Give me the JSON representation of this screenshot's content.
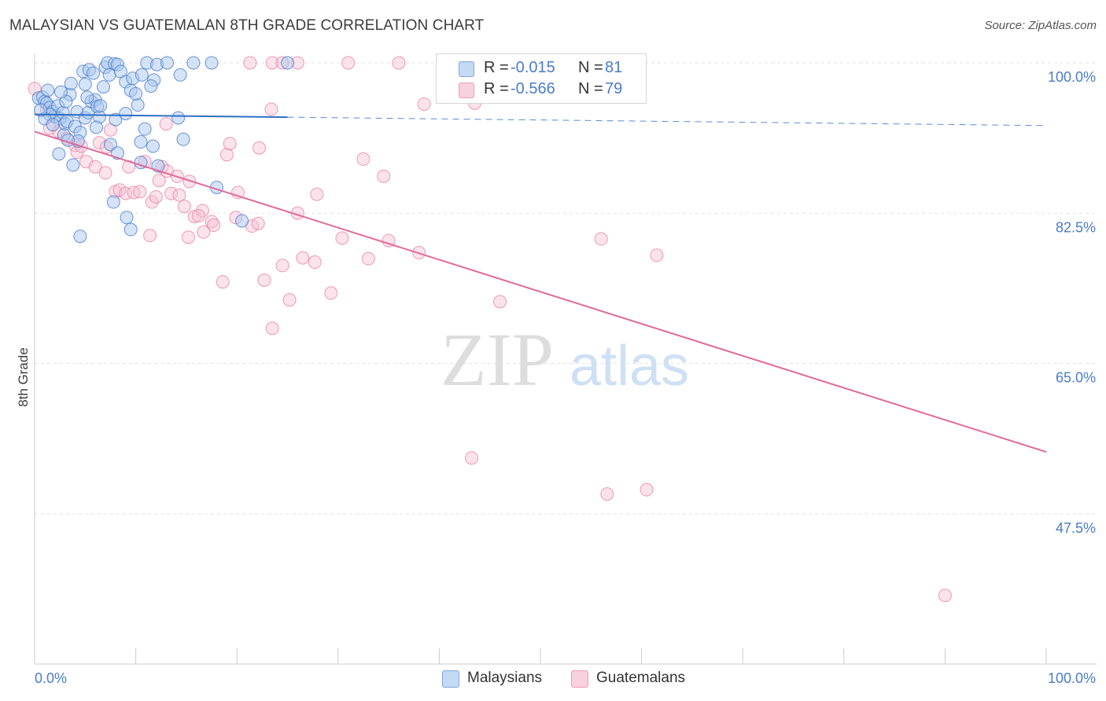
{
  "header": {
    "title": "MALAYSIAN VS GUATEMALAN 8TH GRADE CORRELATION CHART",
    "source": "Source: ZipAtlas.com"
  },
  "watermark": {
    "zip": "ZIP",
    "atlas": "atlas"
  },
  "legend": {
    "malaysian": {
      "r_label": "R =",
      "r_value": "-0.015",
      "n_label": "N =",
      "n_value": "81"
    },
    "guatemalan": {
      "r_label": "R =",
      "r_value": "-0.566",
      "n_label": "N =",
      "n_value": "79"
    }
  },
  "bottom_legend": {
    "malaysians": "Malaysians",
    "guatemalans": "Guatemalans"
  },
  "colors": {
    "malaysian_fill": "#aac8ef",
    "malaysian_stroke": "#4a7cc9",
    "malaysian_line": "#2f6fc4",
    "guatemalan_fill": "#f7c0d2",
    "guatemalan_stroke": "#e87aa0",
    "guatemalan_line": "#e06a98",
    "tick_text": "#4a7cc9"
  },
  "chart_data": {
    "type": "scatter",
    "title": "MALAYSIAN VS GUATEMALAN 8TH GRADE CORRELATION CHART",
    "xlabel": "",
    "ylabel": "8th Grade",
    "xlim": [
      0,
      100
    ],
    "ylim": [
      30,
      100
    ],
    "x_tick_labels": [
      "0.0%",
      "100.0%"
    ],
    "y_ticks": [
      100,
      82.5,
      65,
      47.5
    ],
    "y_tick_labels": [
      "100.0%",
      "82.5%",
      "65.0%",
      "47.5%"
    ],
    "grid": true,
    "series": [
      {
        "name": "Malaysians",
        "r": -0.015,
        "n": 81,
        "trend": {
          "x0": 0,
          "y0": 94.0,
          "x1": 100,
          "y1": 92.7,
          "solid_until_x": 25
        },
        "points": [
          [
            0.4,
            95.9
          ],
          [
            0.8,
            96.0
          ],
          [
            1.0,
            95.5
          ],
          [
            1.2,
            95.3
          ],
          [
            1.5,
            94.8
          ],
          [
            1.8,
            94.3
          ],
          [
            2.0,
            93.8
          ],
          [
            2.3,
            95.0
          ],
          [
            2.5,
            93.5
          ],
          [
            2.8,
            94.2
          ],
          [
            3.0,
            92.9
          ],
          [
            3.2,
            93.2
          ],
          [
            3.5,
            96.3
          ],
          [
            3.6,
            97.6
          ],
          [
            4.0,
            92.6
          ],
          [
            4.2,
            94.3
          ],
          [
            4.5,
            91.9
          ],
          [
            5.0,
            93.6
          ],
          [
            5.3,
            94.2
          ],
          [
            5.6,
            95.5
          ],
          [
            6.0,
            95.7
          ],
          [
            6.2,
            94.9
          ],
          [
            6.4,
            93.7
          ],
          [
            6.5,
            95.0
          ],
          [
            4.3,
            90.9
          ],
          [
            2.4,
            89.4
          ],
          [
            3.8,
            88.1
          ],
          [
            4.8,
            99.0
          ],
          [
            5.4,
            99.2
          ],
          [
            5.8,
            98.8
          ],
          [
            7.0,
            99.5
          ],
          [
            7.2,
            100.0
          ],
          [
            7.4,
            98.6
          ],
          [
            7.9,
            99.9
          ],
          [
            8.2,
            99.8
          ],
          [
            8.5,
            99.0
          ],
          [
            9.0,
            97.8
          ],
          [
            9.5,
            96.8
          ],
          [
            9.7,
            98.2
          ],
          [
            10.2,
            95.1
          ],
          [
            10.6,
            98.6
          ],
          [
            11.1,
            100.0
          ],
          [
            11.8,
            98.0
          ],
          [
            12.1,
            99.8
          ],
          [
            13.1,
            100.0
          ],
          [
            14.4,
            98.6
          ],
          [
            15.7,
            100.0
          ],
          [
            17.5,
            100.0
          ],
          [
            25.0,
            100.0
          ],
          [
            10.9,
            92.3
          ],
          [
            10.5,
            88.4
          ],
          [
            10.5,
            90.8
          ],
          [
            11.7,
            90.3
          ],
          [
            14.2,
            93.6
          ],
          [
            14.7,
            91.1
          ],
          [
            12.2,
            88.0
          ],
          [
            9.1,
            82.0
          ],
          [
            7.8,
            83.8
          ],
          [
            9.5,
            80.6
          ],
          [
            4.5,
            79.8
          ],
          [
            18.0,
            85.5
          ],
          [
            20.5,
            81.6
          ],
          [
            1.5,
            94.0
          ],
          [
            2.9,
            91.6
          ],
          [
            3.3,
            91.0
          ],
          [
            7.5,
            90.5
          ],
          [
            8.2,
            89.5
          ],
          [
            5.0,
            97.5
          ],
          [
            6.8,
            97.2
          ],
          [
            3.1,
            95.5
          ],
          [
            2.6,
            96.6
          ],
          [
            5.2,
            96.0
          ],
          [
            1.0,
            93.5
          ],
          [
            1.8,
            92.8
          ],
          [
            0.6,
            94.5
          ],
          [
            1.3,
            96.8
          ],
          [
            6.1,
            92.5
          ],
          [
            8.0,
            93.4
          ],
          [
            9.0,
            94.1
          ],
          [
            10.0,
            96.4
          ],
          [
            11.5,
            97.3
          ]
        ]
      },
      {
        "name": "Guatemalans",
        "r": -0.566,
        "n": 79,
        "trend": {
          "x0": 0,
          "y0": 92.0,
          "x1": 100,
          "y1": 54.7
        },
        "points": [
          [
            0.0,
            97.0
          ],
          [
            1.2,
            94.5
          ],
          [
            1.5,
            92.4
          ],
          [
            2.4,
            92.0
          ],
          [
            3.2,
            91.2
          ],
          [
            4.0,
            90.4
          ],
          [
            4.2,
            89.6
          ],
          [
            4.6,
            90.3
          ],
          [
            5.1,
            88.5
          ],
          [
            6.0,
            87.9
          ],
          [
            6.4,
            90.7
          ],
          [
            7.0,
            87.2
          ],
          [
            7.1,
            90.2
          ],
          [
            7.5,
            92.2
          ],
          [
            8.0,
            85.0
          ],
          [
            8.4,
            85.2
          ],
          [
            9.0,
            84.8
          ],
          [
            9.8,
            84.9
          ],
          [
            9.3,
            87.9
          ],
          [
            10.4,
            85.0
          ],
          [
            10.9,
            88.5
          ],
          [
            11.4,
            79.9
          ],
          [
            11.6,
            83.8
          ],
          [
            12.0,
            84.4
          ],
          [
            12.3,
            86.3
          ],
          [
            12.6,
            87.9
          ],
          [
            13.1,
            87.4
          ],
          [
            13.0,
            92.9
          ],
          [
            13.5,
            84.8
          ],
          [
            14.1,
            86.8
          ],
          [
            14.3,
            84.6
          ],
          [
            14.8,
            83.3
          ],
          [
            15.2,
            79.7
          ],
          [
            15.8,
            82.1
          ],
          [
            15.3,
            86.2
          ],
          [
            16.6,
            82.8
          ],
          [
            16.2,
            82.2
          ],
          [
            16.7,
            80.3
          ],
          [
            17.5,
            81.5
          ],
          [
            17.7,
            81.1
          ],
          [
            18.6,
            74.5
          ],
          [
            19.0,
            89.3
          ],
          [
            19.3,
            90.6
          ],
          [
            19.9,
            82.0
          ],
          [
            20.1,
            84.9
          ],
          [
            21.5,
            81.0
          ],
          [
            22.1,
            81.3
          ],
          [
            22.7,
            74.7
          ],
          [
            22.2,
            90.1
          ],
          [
            23.4,
            94.6
          ],
          [
            23.5,
            69.1
          ],
          [
            24.5,
            76.4
          ],
          [
            25.2,
            72.4
          ],
          [
            26.0,
            82.5
          ],
          [
            26.5,
            77.3
          ],
          [
            27.7,
            76.8
          ],
          [
            27.9,
            84.7
          ],
          [
            29.3,
            73.2
          ],
          [
            30.4,
            79.6
          ],
          [
            32.5,
            88.8
          ],
          [
            33.0,
            77.2
          ],
          [
            34.5,
            86.8
          ],
          [
            35.0,
            79.3
          ],
          [
            38.0,
            77.9
          ],
          [
            38.5,
            95.2
          ],
          [
            43.5,
            95.3
          ],
          [
            43.2,
            54.0
          ],
          [
            46.0,
            72.2
          ],
          [
            56.0,
            79.5
          ],
          [
            56.6,
            49.8
          ],
          [
            60.5,
            50.3
          ],
          [
            61.5,
            77.6
          ],
          [
            90.0,
            38.0
          ],
          [
            21.3,
            100.0
          ],
          [
            23.5,
            100.0
          ],
          [
            24.5,
            100.0
          ],
          [
            26.0,
            100.0
          ],
          [
            31.0,
            100.0
          ],
          [
            36.0,
            100.0
          ]
        ]
      }
    ]
  }
}
